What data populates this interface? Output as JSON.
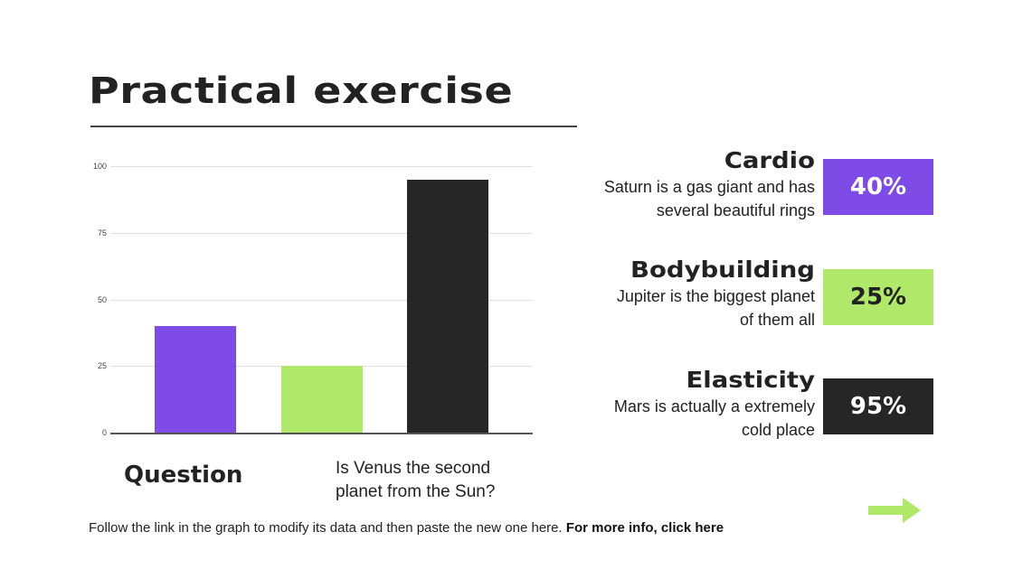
{
  "title": "Practical exercise",
  "colors": {
    "purple": "#7f4be6",
    "green": "#b0e86a",
    "dark": "#262626",
    "text": "#222222"
  },
  "chart_data": {
    "type": "bar",
    "categories": [
      "Cardio",
      "Bodybuilding",
      "Elasticity"
    ],
    "values": [
      40,
      25,
      95
    ],
    "colors": [
      "#7f4be6",
      "#b0e86a",
      "#262626"
    ],
    "title": "",
    "xlabel": "",
    "ylabel": "",
    "ylim": [
      0,
      100
    ],
    "yticks": [
      "100",
      "75",
      "50",
      "25",
      "0"
    ],
    "grid": true,
    "legend": "none"
  },
  "question": {
    "label": "Question",
    "text_line1": "Is Venus the second",
    "text_line2": "planet from the Sun?"
  },
  "items": [
    {
      "title": "Cardio",
      "desc_line1": "Saturn is a gas giant and has",
      "desc_line2": "several beautiful rings",
      "pct": "40%"
    },
    {
      "title": "Bodybuilding",
      "desc_line1": "Jupiter is the biggest planet",
      "desc_line2": "of them all",
      "pct": "25%"
    },
    {
      "title": "Elasticity",
      "desc_line1": "Mars is actually a extremely",
      "desc_line2": "cold place",
      "pct": "95%"
    }
  ],
  "footer": {
    "text": "Follow the link in the graph to modify its data and then paste the new one here. ",
    "link": "For more info, click here"
  },
  "nav": {
    "next_icon": "arrow-right-icon"
  }
}
